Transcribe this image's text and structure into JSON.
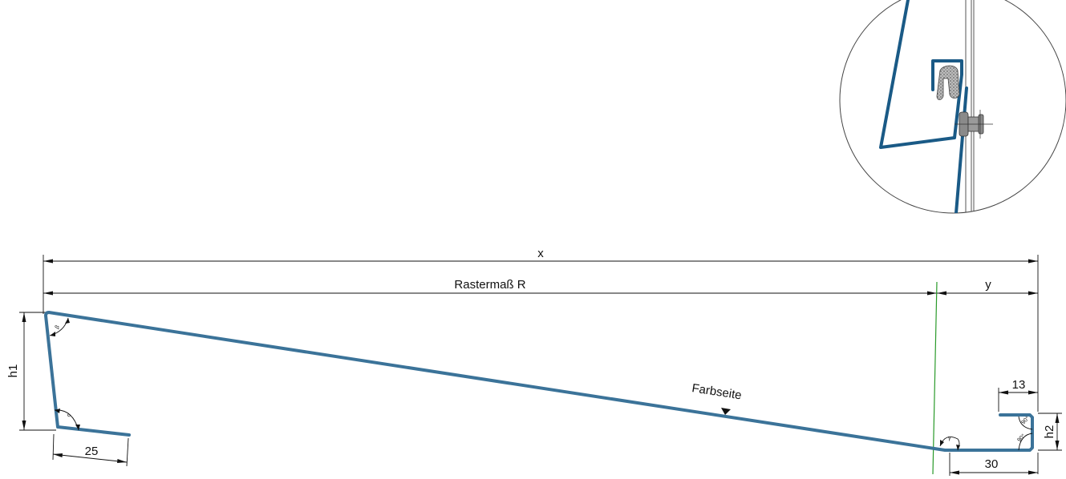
{
  "colors": {
    "profile": "#3b7399",
    "detail_profile": "#1a5a86",
    "grid_line": "#2a9a2a",
    "dimension": "#111111"
  },
  "labels": {
    "x": "x",
    "raster": "Rastermaß R",
    "y": "y",
    "h1": "h1",
    "h2": "h2",
    "d25": "25",
    "d13": "13",
    "d30": "30",
    "farbseite": "Farbseite",
    "beta": "β",
    "alpha": "α",
    "gamma": "γ",
    "ang90a": "90°",
    "ang90b": "90°"
  }
}
